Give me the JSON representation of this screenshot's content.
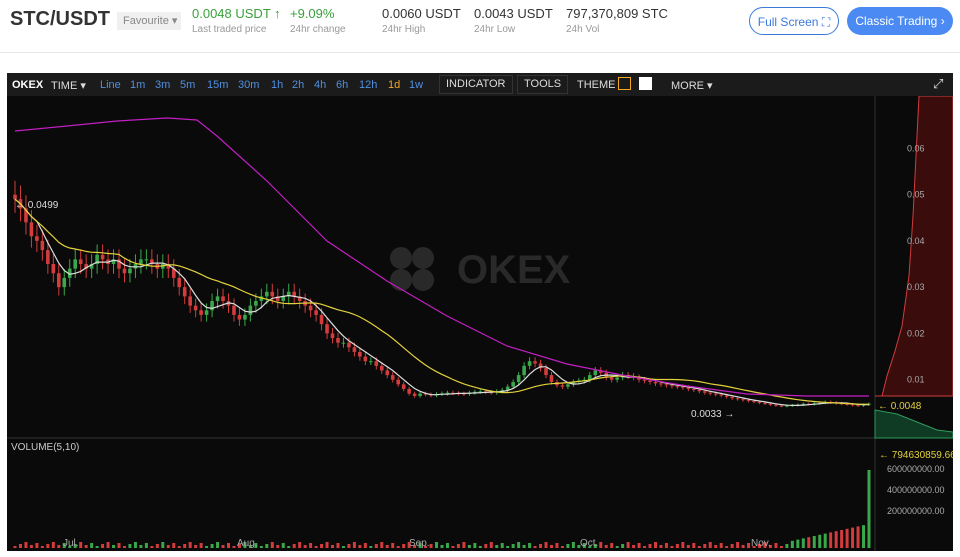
{
  "header": {
    "pair": "STC/USDT",
    "favourite_label": "Favourite",
    "stats": [
      {
        "value": "0.0048 USDT",
        "label": "Last traded price"
      },
      {
        "value": "+9.09%",
        "label": "24hr change"
      },
      {
        "value": "0.0060 USDT",
        "label": "24hr High"
      },
      {
        "value": "0.0043 USDT",
        "label": "24hr Low"
      },
      {
        "value": "797,370,809 STC",
        "label": "24h Vol"
      }
    ],
    "full_screen_label": "Full Screen",
    "classic_trading_label": "Classic Trading"
  },
  "toolbar": {
    "brand": "OKEX",
    "time_label": "TIME",
    "periods": [
      "Line",
      "1m",
      "3m",
      "5m",
      "15m",
      "30m",
      "1h",
      "2h",
      "4h",
      "6h",
      "12h",
      "1d",
      "1w"
    ],
    "active_period": "1d",
    "indicator_label": "INDICATOR",
    "tools_label": "TOOLS",
    "theme_label": "THEME",
    "more_label": "MORE"
  },
  "chart_data": {
    "type": "candlestick",
    "watermark": "OKEX",
    "x_ticks": [
      "Jul.",
      "Aug.",
      "Sep.",
      "Oct.",
      "Nov."
    ],
    "price_ticks": [
      "0.06",
      "0.05",
      "0.04",
      "0.03",
      "0.02",
      "0.01"
    ],
    "high_marker": "0.0499",
    "low_marker": "0.0033",
    "last_price": "0.0048",
    "volume_label": "VOLUME(5,10)",
    "volume_ticks": [
      "600000000.00",
      "400000000.00",
      "200000000.00"
    ],
    "volume_last": "794630859.66",
    "closes": [
      0.049,
      0.047,
      0.044,
      0.041,
      0.04,
      0.038,
      0.035,
      0.033,
      0.03,
      0.032,
      0.034,
      0.036,
      0.035,
      0.034,
      0.035,
      0.037,
      0.036,
      0.035,
      0.036,
      0.034,
      0.033,
      0.034,
      0.035,
      0.036,
      0.036,
      0.035,
      0.034,
      0.035,
      0.034,
      0.032,
      0.03,
      0.028,
      0.026,
      0.025,
      0.024,
      0.025,
      0.027,
      0.028,
      0.027,
      0.026,
      0.024,
      0.023,
      0.024,
      0.026,
      0.027,
      0.028,
      0.029,
      0.028,
      0.027,
      0.028,
      0.029,
      0.028,
      0.027,
      0.026,
      0.025,
      0.024,
      0.022,
      0.02,
      0.019,
      0.018,
      0.018,
      0.017,
      0.016,
      0.015,
      0.014,
      0.014,
      0.013,
      0.012,
      0.011,
      0.01,
      0.009,
      0.008,
      0.007,
      0.0065,
      0.007,
      0.0068,
      0.0066,
      0.0069,
      0.007,
      0.0072,
      0.0071,
      0.007,
      0.0069,
      0.0072,
      0.0074,
      0.0075,
      0.0073,
      0.0072,
      0.0075,
      0.0078,
      0.0085,
      0.0095,
      0.011,
      0.013,
      0.014,
      0.0135,
      0.0125,
      0.011,
      0.0095,
      0.0088,
      0.0085,
      0.009,
      0.0095,
      0.0098,
      0.01,
      0.011,
      0.012,
      0.0115,
      0.0105,
      0.01,
      0.0105,
      0.011,
      0.0108,
      0.0105,
      0.01,
      0.0098,
      0.0095,
      0.0092,
      0.009,
      0.0088,
      0.0086,
      0.0085,
      0.0083,
      0.008,
      0.0078,
      0.0075,
      0.0072,
      0.007,
      0.0068,
      0.0066,
      0.0063,
      0.006,
      0.0058,
      0.0056,
      0.0054,
      0.0052,
      0.005,
      0.0048,
      0.0046,
      0.0044,
      0.0043,
      0.0044,
      0.0045,
      0.0046,
      0.0048,
      0.0047,
      0.0049,
      0.005,
      0.0052,
      0.0051,
      0.0049,
      0.0048,
      0.0047,
      0.0045,
      0.0044,
      0.0046,
      0.0048
    ]
  }
}
